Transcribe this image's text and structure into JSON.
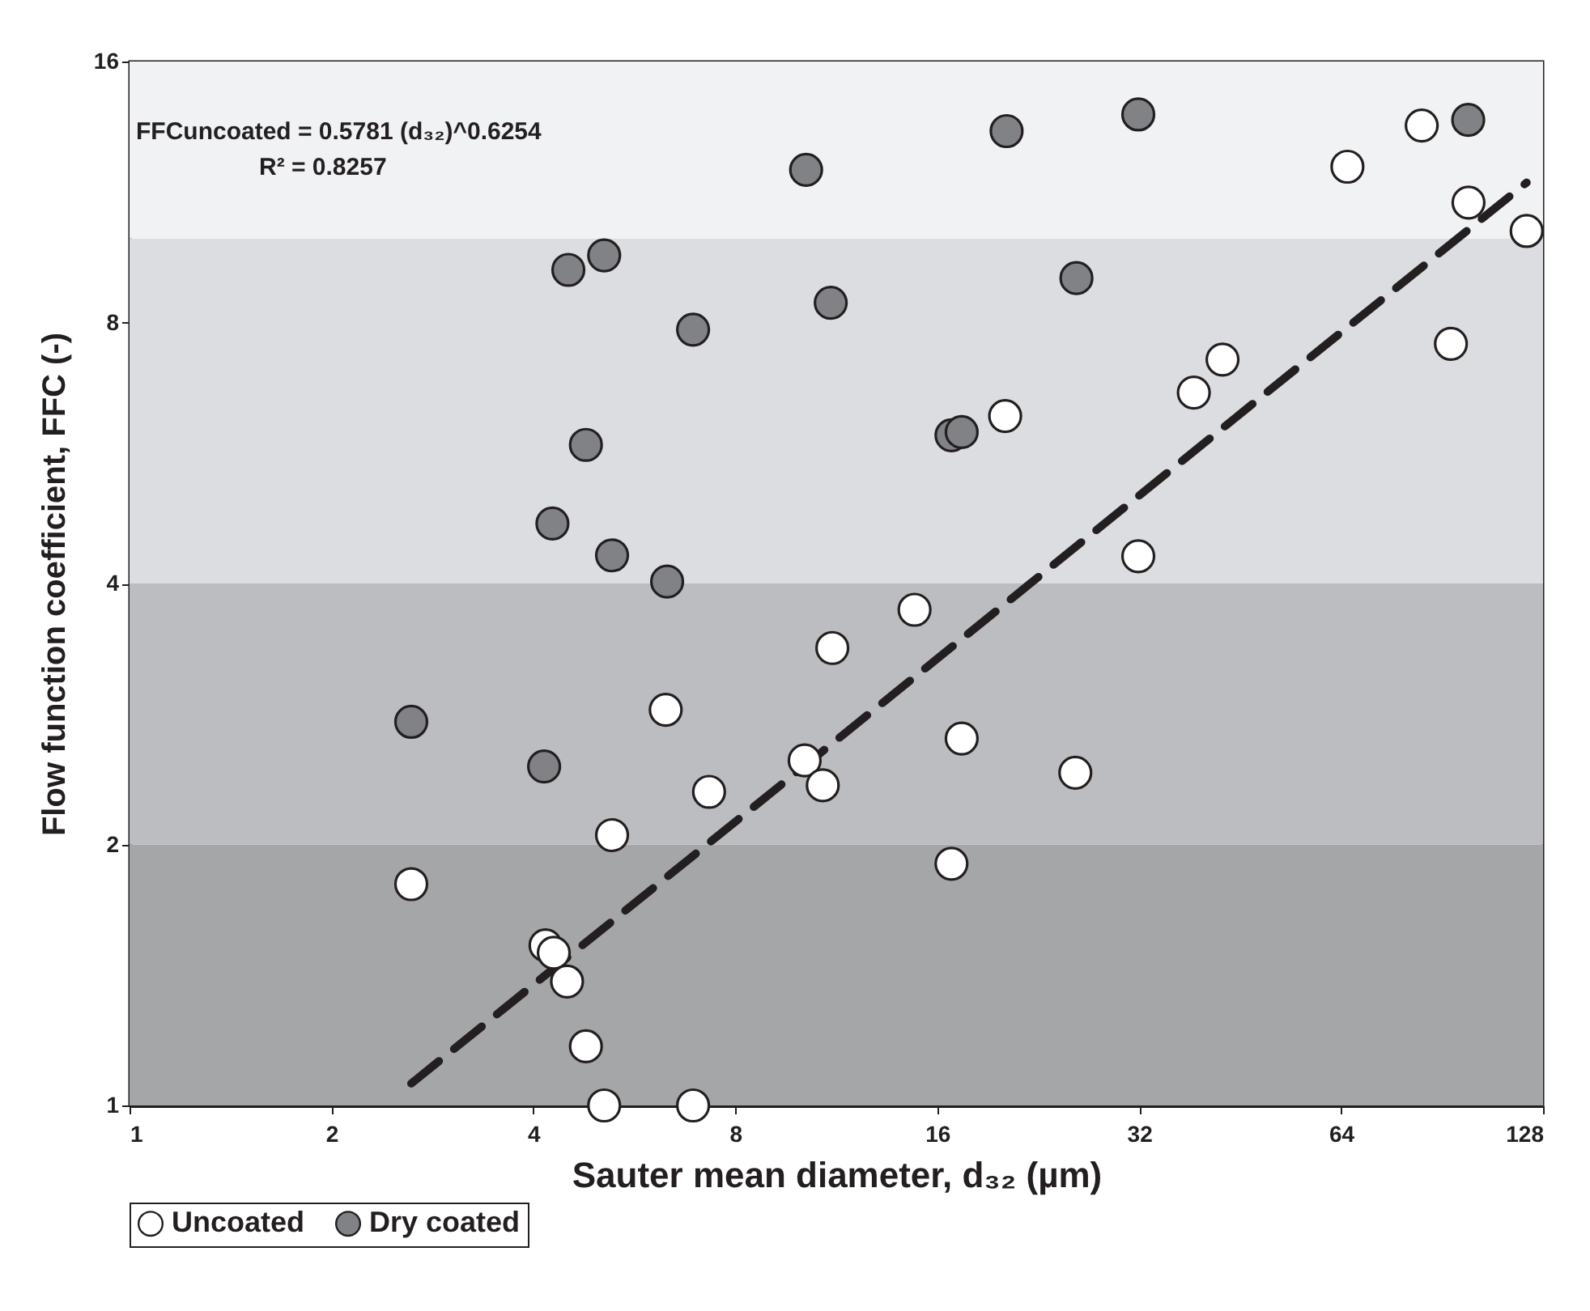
{
  "chart_data": {
    "type": "scatter",
    "xlabel": "Sauter mean diameter, d₃₂ (µm)",
    "ylabel": "Flow function coefficient, FFC (-)",
    "annotations": [
      "FFCuncoated = 0.5781 (d₃₂)^0.6254",
      "R² = 0.8257"
    ],
    "log": "xy",
    "xlim": [
      1,
      128
    ],
    "xticks": [
      1,
      2,
      4,
      8,
      16,
      32,
      64,
      128
    ],
    "ylim": [
      1,
      16
    ],
    "yticks": [
      1,
      2,
      4,
      8,
      16
    ],
    "grid": false,
    "legend": "bottom",
    "marker": "circle",
    "bands": [
      {
        "axis": "y",
        "from": 1,
        "to": 2,
        "color": "#a5a6a8"
      },
      {
        "axis": "y",
        "from": 2,
        "to": 4,
        "color": "#bcbdc0"
      },
      {
        "axis": "y",
        "from": 4,
        "to": 10,
        "color": "#dcdde0"
      },
      {
        "axis": "y",
        "from": 10,
        "to": 16,
        "color": "#f1f2f4"
      }
    ],
    "series": [
      {
        "name": "Uncoated",
        "color": "#ffffff",
        "x": [
          2.63,
          4.17,
          4.29,
          4.49,
          4.79,
          5.1,
          6.92,
          5.24,
          6.3,
          7.31,
          10.15,
          10.8,
          11.16,
          14.8,
          17.4,
          16.8,
          25.7,
          31.9,
          20.2,
          38.6,
          42.6,
          65.4,
          84.4,
          99.1,
          93.3,
          121
        ],
        "values": [
          1.8,
          1.53,
          1.5,
          1.39,
          1.17,
          1.0,
          1.0,
          2.05,
          2.86,
          2.3,
          2.5,
          2.34,
          3.37,
          3.73,
          2.65,
          1.9,
          2.42,
          4.3,
          6.24,
          6.64,
          7.25,
          12.1,
          13.5,
          11.0,
          7.56,
          10.2
        ]
      },
      {
        "name": "Dry coated",
        "color": "#808285",
        "x": [
          2.63,
          4.15,
          4.51,
          5.1,
          6.92,
          4.79,
          4.27,
          5.24,
          6.33,
          10.2,
          11.1,
          20.3,
          31.9,
          99,
          25.8,
          16.8,
          17.4
        ],
        "values": [
          2.77,
          2.46,
          9.2,
          9.56,
          7.85,
          5.78,
          4.69,
          4.31,
          4.02,
          12.0,
          8.43,
          13.3,
          13.9,
          13.7,
          9.0,
          5.93,
          5.98
        ]
      },
      {
        "type": "line",
        "color": "#231f20",
        "line_style": "dashed",
        "marker": "none",
        "x": [
          2.63,
          121
        ],
        "values": [
          1.06,
          11.6
        ]
      }
    ]
  }
}
